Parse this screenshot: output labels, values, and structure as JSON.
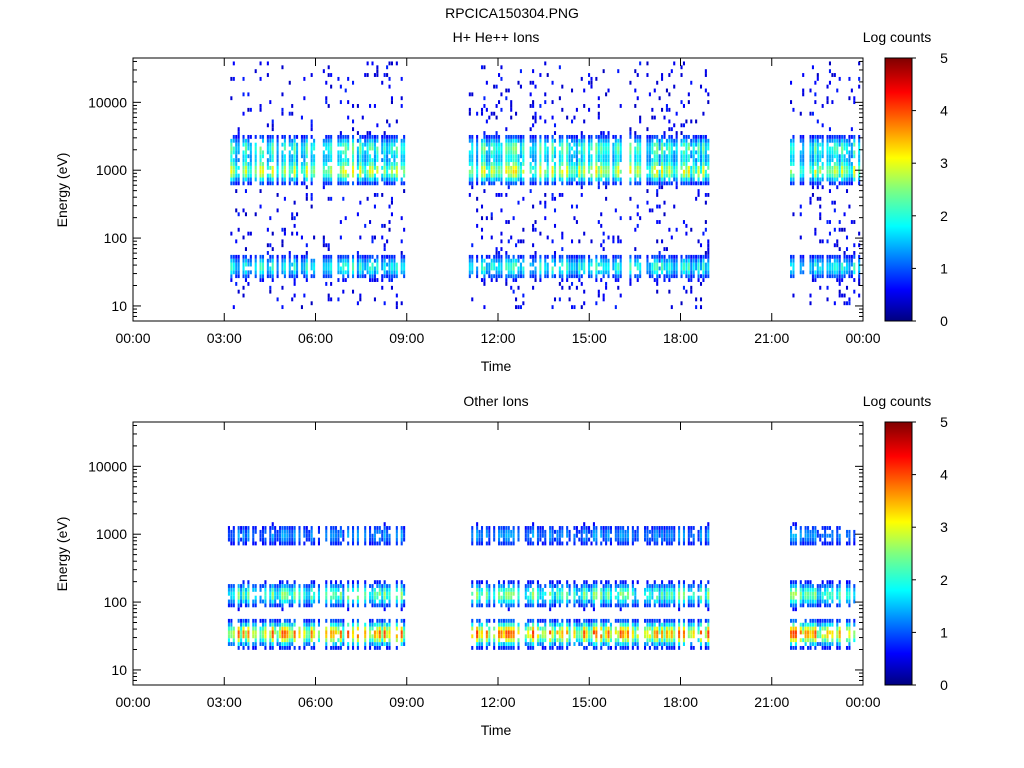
{
  "figure_title": "RPCICA150304.PNG",
  "chart_data": [
    {
      "type": "heatmap",
      "title": "H+ He++ Ions",
      "xlabel": "Time",
      "ylabel": "Energy (eV)",
      "x_ticks": [
        "00:00",
        "03:00",
        "06:00",
        "09:00",
        "12:00",
        "15:00",
        "18:00",
        "21:00",
        "00:00"
      ],
      "x_range_hours": [
        0,
        24
      ],
      "y_scale": "log",
      "y_range": [
        6,
        45000
      ],
      "y_ticks": [
        {
          "value": 10,
          "label": "10"
        },
        {
          "value": 100,
          "label": "100"
        },
        {
          "value": 1000,
          "label": "1000"
        },
        {
          "value": 10000,
          "label": "10000"
        }
      ],
      "colorbar": {
        "label": "Log counts",
        "min": 0,
        "max": 5,
        "ticks": [
          "0",
          "1",
          "2",
          "3",
          "4",
          "5"
        ]
      },
      "data_segments_hours": [
        [
          3.1,
          8.9
        ],
        [
          11.0,
          18.9
        ],
        [
          21.6,
          23.85
        ]
      ],
      "bands": [
        {
          "center_eV": 2000,
          "peak_log_counts": 2.6
        },
        {
          "center_eV": 900,
          "peak_log_counts": 3.3
        },
        {
          "center_eV": 35,
          "peak_log_counts": 2.4
        }
      ]
    },
    {
      "type": "heatmap",
      "title": "Other Ions",
      "xlabel": "Time",
      "ylabel": "Energy (eV)",
      "x_ticks": [
        "00:00",
        "03:00",
        "06:00",
        "09:00",
        "12:00",
        "15:00",
        "18:00",
        "21:00",
        "00:00"
      ],
      "x_range_hours": [
        0,
        24
      ],
      "y_scale": "log",
      "y_range": [
        6,
        45000
      ],
      "y_ticks": [
        {
          "value": 10,
          "label": "10"
        },
        {
          "value": 100,
          "label": "100"
        },
        {
          "value": 1000,
          "label": "1000"
        },
        {
          "value": 10000,
          "label": "10000"
        }
      ],
      "colorbar": {
        "label": "Log counts",
        "min": 0,
        "max": 5,
        "ticks": [
          "0",
          "1",
          "2",
          "3",
          "4",
          "5"
        ]
      },
      "data_segments_hours": [
        [
          3.1,
          8.9
        ],
        [
          11.0,
          18.9
        ],
        [
          21.6,
          23.85
        ]
      ],
      "bands": [
        {
          "center_eV": 32,
          "peak_log_counts": 4.2
        },
        {
          "center_eV": 120,
          "peak_log_counts": 2.8
        },
        {
          "center_eV": 900,
          "peak_log_counts": 1.6
        }
      ]
    }
  ]
}
